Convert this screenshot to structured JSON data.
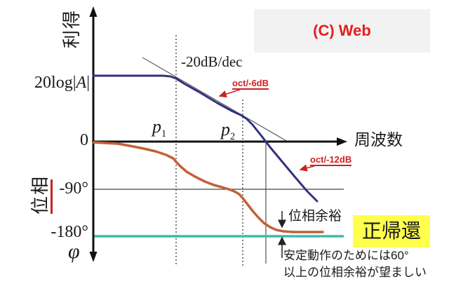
{
  "header": {
    "copyright": "(C) Web"
  },
  "axes": {
    "gain_axis_label": "利得",
    "phase_axis_label": "位相",
    "freq_axis_label": "周波数",
    "gain_value_label": {
      "prefix": "20log",
      "bar": "|",
      "symbol": "A"
    },
    "zero_label": "0",
    "minus90_label": "-90°",
    "minus180_label": "-180°",
    "phi_label": "φ"
  },
  "annotations": {
    "slope_dec": "-20dB/dec",
    "slope_oct1": "oct/-6dB",
    "slope_oct2": "oct/-12dB",
    "p1": {
      "base": "p",
      "sub": "1"
    },
    "p2": {
      "base": "p",
      "sub": "2"
    },
    "phase_margin": "位相余裕",
    "positive_feedback": "正帰還",
    "note_line1": "安定動作のためには60°",
    "note_line2": "以上の位相余裕が望ましい"
  },
  "colors": {
    "gain_curve": "#32327f",
    "phase_curve": "#c2603a",
    "minus180_line": "#3cbcaa",
    "annotation_red": "#cc2222",
    "copyright_red": "#e41e1e",
    "highlight_yellow": "#ffff4d",
    "axis_black": "#111111",
    "guide_gray": "#666666"
  },
  "geometry": {
    "gain_curve": [
      [
        133,
        108
      ],
      [
        200,
        108
      ],
      [
        232,
        108
      ],
      [
        243,
        109
      ],
      [
        251,
        112
      ],
      [
        262,
        119
      ],
      [
        285,
        132
      ],
      [
        310,
        147
      ],
      [
        330,
        158
      ],
      [
        343,
        164
      ],
      [
        351,
        169
      ],
      [
        360,
        178
      ],
      [
        372,
        193
      ],
      [
        385,
        210
      ],
      [
        400,
        228
      ],
      [
        420,
        252
      ],
      [
        438,
        273
      ],
      [
        452,
        287
      ]
    ],
    "phase_curve": [
      [
        133,
        203
      ],
      [
        150,
        204
      ],
      [
        168,
        205
      ],
      [
        185,
        208
      ],
      [
        205,
        212
      ],
      [
        222,
        216
      ],
      [
        237,
        221
      ],
      [
        247,
        226
      ],
      [
        252,
        232
      ],
      [
        258,
        238
      ],
      [
        266,
        245
      ],
      [
        278,
        252
      ],
      [
        292,
        259
      ],
      [
        305,
        264
      ],
      [
        316,
        267
      ],
      [
        326,
        270
      ],
      [
        334,
        273
      ],
      [
        341,
        277
      ],
      [
        347,
        284
      ],
      [
        354,
        293
      ],
      [
        361,
        302
      ],
      [
        368,
        310
      ],
      [
        376,
        318
      ],
      [
        385,
        324
      ],
      [
        394,
        328
      ],
      [
        404,
        330
      ],
      [
        418,
        331
      ],
      [
        460,
        331
      ]
    ],
    "asymptote": [
      [
        203,
        82
      ],
      [
        410,
        202
      ]
    ],
    "leader_6db": [
      [
        342,
        128
      ],
      [
        313,
        137
      ]
    ],
    "leader_12db": [
      [
        448,
        237
      ],
      [
        428,
        242
      ]
    ],
    "pm_arrow_upper": [
      [
        402,
        301
      ],
      [
        402,
        324
      ]
    ],
    "pm_arrow_lower": [
      [
        402,
        368
      ],
      [
        402,
        339
      ]
    ]
  },
  "chart_data": {
    "type": "line",
    "title": "ボード線図 (Bode plot): 利得と位相",
    "xlabel": "周波数",
    "x_scale": "log (qualitative, relative decades)",
    "x_markers": {
      "p1": 1.7,
      "p2": 3.0,
      "unity_gain_crossover": 3.5
    },
    "series": [
      {
        "name": "利得 20log|A| (dB)",
        "color": "#32327f",
        "x": [
          0,
          1.7,
          3.0,
          3.5,
          4.6
        ],
        "y": [
          40,
          40,
          16,
          0,
          -36
        ],
        "note": "flat at 20log|A| until p1, then -20dB/dec (oct/-6dB), then -40dB/dec (oct/-12dB) after p2"
      },
      {
        "name": "位相 φ (deg)",
        "color": "#c2603a",
        "x": [
          0,
          1.0,
          1.7,
          2.1,
          2.5,
          2.8,
          3.0,
          3.3,
          3.5,
          3.7,
          4.1,
          4.7
        ],
        "y": [
          0,
          -13,
          -39,
          -67,
          -83,
          -91,
          -108,
          -133,
          -155,
          -168,
          -172,
          -172
        ],
        "note": "descends from 0° toward -180°; small phase margin (位相余裕) at unity-gain crossover"
      }
    ],
    "reference_lines": [
      {
        "label": "0",
        "axis": "gain"
      },
      {
        "label": "-90°",
        "axis": "phase"
      },
      {
        "label": "-180°",
        "axis": "phase",
        "color": "#3cbcaa",
        "meaning": "正帰還 (positive feedback) boundary"
      }
    ],
    "annotations": [
      "-20dB/dec",
      "oct/-6dB",
      "oct/-12dB",
      "p1",
      "p2",
      "位相余裕",
      "正帰還",
      "安定動作のためには60°以上の位相余裕が望ましい"
    ],
    "legend_position": "none",
    "grid": "off"
  }
}
